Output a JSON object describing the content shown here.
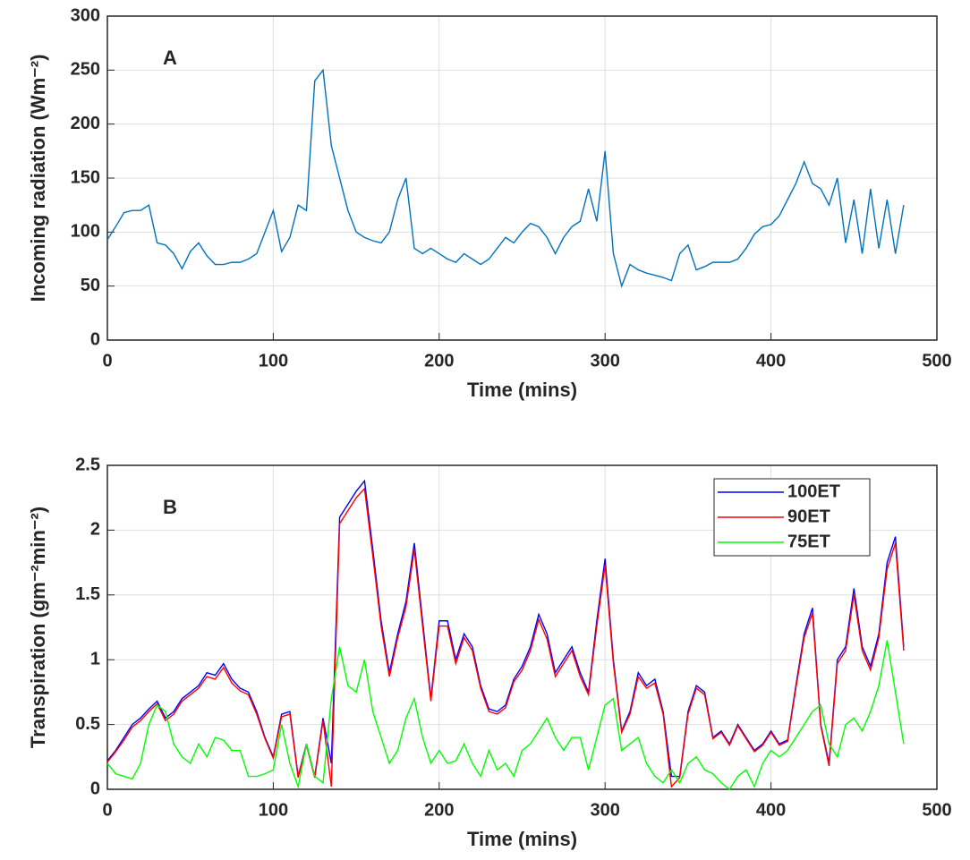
{
  "chart_data": [
    {
      "type": "line",
      "annotation": "A",
      "xlabel": "Time (mins)",
      "ylabel": "Incoming radiation (Wm⁻²)",
      "xlim": [
        0,
        500
      ],
      "xticks": [
        0,
        100,
        200,
        300,
        400,
        500
      ],
      "ylim": [
        0,
        300
      ],
      "yticks": [
        0,
        50,
        100,
        150,
        200,
        250,
        300
      ],
      "grid": true,
      "x": [
        0,
        5,
        10,
        15,
        20,
        25,
        30,
        35,
        40,
        45,
        50,
        55,
        60,
        65,
        70,
        75,
        80,
        85,
        90,
        95,
        100,
        105,
        110,
        115,
        120,
        125,
        130,
        135,
        140,
        145,
        150,
        155,
        160,
        165,
        170,
        175,
        180,
        185,
        190,
        195,
        200,
        205,
        210,
        215,
        220,
        225,
        230,
        235,
        240,
        245,
        250,
        255,
        260,
        265,
        270,
        275,
        280,
        285,
        290,
        295,
        300,
        305,
        310,
        315,
        320,
        325,
        330,
        335,
        340,
        345,
        350,
        355,
        360,
        365,
        370,
        375,
        380,
        385,
        390,
        395,
        400,
        405,
        410,
        415,
        420,
        425,
        430,
        435,
        440,
        445,
        450,
        455,
        460,
        465,
        470,
        475,
        480
      ],
      "series": [
        {
          "color": "#0072bd",
          "values": [
            93,
            105,
            118,
            120,
            120,
            125,
            90,
            88,
            80,
            66,
            82,
            90,
            78,
            70,
            70,
            72,
            72,
            75,
            80,
            100,
            120,
            82,
            95,
            125,
            120,
            240,
            250,
            180,
            150,
            120,
            100,
            95,
            92,
            90,
            100,
            130,
            150,
            85,
            80,
            85,
            80,
            75,
            72,
            80,
            75,
            70,
            75,
            85,
            95,
            90,
            100,
            108,
            105,
            95,
            80,
            95,
            105,
            110,
            140,
            110,
            175,
            80,
            50,
            70,
            65,
            62,
            60,
            58,
            55,
            80,
            88,
            65,
            68,
            72,
            72,
            72,
            75,
            85,
            98,
            105,
            107,
            115,
            130,
            145,
            165,
            145,
            140,
            125,
            150,
            90,
            130,
            80,
            140,
            85,
            130,
            80,
            125
          ]
        }
      ]
    },
    {
      "type": "line",
      "annotation": "B",
      "xlabel": "Time (mins)",
      "ylabel": "Transpiration (gm⁻²min⁻²)",
      "xlim": [
        0,
        500
      ],
      "xticks": [
        0,
        100,
        200,
        300,
        400,
        500
      ],
      "ylim": [
        0,
        2.5
      ],
      "yticks": [
        0,
        0.5,
        1,
        1.5,
        2,
        2.5
      ],
      "grid": true,
      "legend": "northeast",
      "x": [
        0,
        5,
        10,
        15,
        20,
        25,
        30,
        35,
        40,
        45,
        50,
        55,
        60,
        65,
        70,
        75,
        80,
        85,
        90,
        95,
        100,
        105,
        110,
        115,
        120,
        125,
        130,
        135,
        140,
        145,
        150,
        155,
        160,
        165,
        170,
        175,
        180,
        185,
        190,
        195,
        200,
        205,
        210,
        215,
        220,
        225,
        230,
        235,
        240,
        245,
        250,
        255,
        260,
        265,
        270,
        275,
        280,
        285,
        290,
        295,
        300,
        305,
        310,
        315,
        320,
        325,
        330,
        335,
        340,
        345,
        350,
        355,
        360,
        365,
        370,
        375,
        380,
        385,
        390,
        395,
        400,
        405,
        410,
        415,
        420,
        425,
        430,
        435,
        440,
        445,
        450,
        455,
        460,
        465,
        470,
        475,
        480
      ],
      "series": [
        {
          "name": "100ET",
          "color": "#0000ff",
          "values": [
            0.22,
            0.3,
            0.4,
            0.5,
            0.55,
            0.62,
            0.68,
            0.55,
            0.6,
            0.7,
            0.75,
            0.8,
            0.9,
            0.88,
            0.97,
            0.85,
            0.78,
            0.75,
            0.6,
            0.4,
            0.25,
            0.58,
            0.6,
            0.1,
            0.35,
            0.1,
            0.55,
            0.2,
            2.1,
            2.2,
            2.3,
            2.38,
            1.85,
            1.3,
            0.9,
            1.2,
            1.45,
            1.9,
            1.3,
            0.7,
            1.3,
            1.3,
            1.0,
            1.2,
            1.1,
            0.8,
            0.62,
            0.6,
            0.65,
            0.85,
            0.95,
            1.1,
            1.35,
            1.2,
            0.9,
            1.0,
            1.1,
            0.9,
            0.75,
            1.3,
            1.78,
            1.0,
            0.45,
            0.6,
            0.9,
            0.8,
            0.85,
            0.6,
            0.1,
            0.1,
            0.6,
            0.8,
            0.75,
            0.4,
            0.45,
            0.35,
            0.5,
            0.4,
            0.3,
            0.35,
            0.45,
            0.35,
            0.38,
            0.8,
            1.2,
            1.4,
            0.5,
            0.2,
            1.0,
            1.1,
            1.55,
            1.1,
            0.95,
            1.2,
            1.75,
            1.95,
            1.1
          ]
        },
        {
          "name": "90ET",
          "color": "#ff0000",
          "values": [
            0.21,
            0.29,
            0.38,
            0.48,
            0.53,
            0.6,
            0.66,
            0.53,
            0.58,
            0.68,
            0.73,
            0.78,
            0.87,
            0.85,
            0.94,
            0.82,
            0.76,
            0.73,
            0.58,
            0.39,
            0.24,
            0.56,
            0.58,
            0.09,
            0.34,
            0.09,
            0.53,
            0.02,
            2.05,
            2.15,
            2.25,
            2.32,
            1.8,
            1.26,
            0.87,
            1.17,
            1.41,
            1.85,
            1.26,
            0.68,
            1.26,
            1.26,
            0.97,
            1.17,
            1.07,
            0.78,
            0.6,
            0.58,
            0.63,
            0.83,
            0.92,
            1.07,
            1.31,
            1.16,
            0.87,
            0.97,
            1.07,
            0.87,
            0.73,
            1.26,
            1.73,
            0.97,
            0.44,
            0.58,
            0.87,
            0.78,
            0.82,
            0.58,
            0.02,
            0.09,
            0.58,
            0.78,
            0.73,
            0.39,
            0.44,
            0.34,
            0.49,
            0.39,
            0.29,
            0.34,
            0.44,
            0.34,
            0.37,
            0.78,
            1.17,
            1.36,
            0.49,
            0.18,
            0.97,
            1.07,
            1.5,
            1.07,
            0.92,
            1.17,
            1.7,
            1.9,
            1.07
          ]
        },
        {
          "name": "75ET",
          "color": "#00ff00",
          "values": [
            0.2,
            0.12,
            0.1,
            0.08,
            0.2,
            0.5,
            0.65,
            0.6,
            0.35,
            0.25,
            0.2,
            0.35,
            0.25,
            0.4,
            0.38,
            0.3,
            0.3,
            0.1,
            0.1,
            0.12,
            0.15,
            0.5,
            0.2,
            0.02,
            0.35,
            0.1,
            0.05,
            0.7,
            1.1,
            0.8,
            0.75,
            1.0,
            0.6,
            0.4,
            0.2,
            0.3,
            0.55,
            0.7,
            0.4,
            0.2,
            0.3,
            0.2,
            0.22,
            0.35,
            0.2,
            0.1,
            0.3,
            0.15,
            0.2,
            0.1,
            0.3,
            0.35,
            0.45,
            0.55,
            0.4,
            0.3,
            0.4,
            0.4,
            0.15,
            0.4,
            0.65,
            0.7,
            0.3,
            0.35,
            0.4,
            0.2,
            0.1,
            0.05,
            0.15,
            0.05,
            0.2,
            0.25,
            0.15,
            0.12,
            0.05,
            0,
            0.1,
            0.15,
            0.02,
            0.2,
            0.3,
            0.25,
            0.3,
            0.4,
            0.5,
            0.6,
            0.65,
            0.35,
            0.25,
            0.5,
            0.55,
            0.45,
            0.6,
            0.8,
            1.15,
            0.75,
            0.35
          ]
        }
      ]
    }
  ]
}
